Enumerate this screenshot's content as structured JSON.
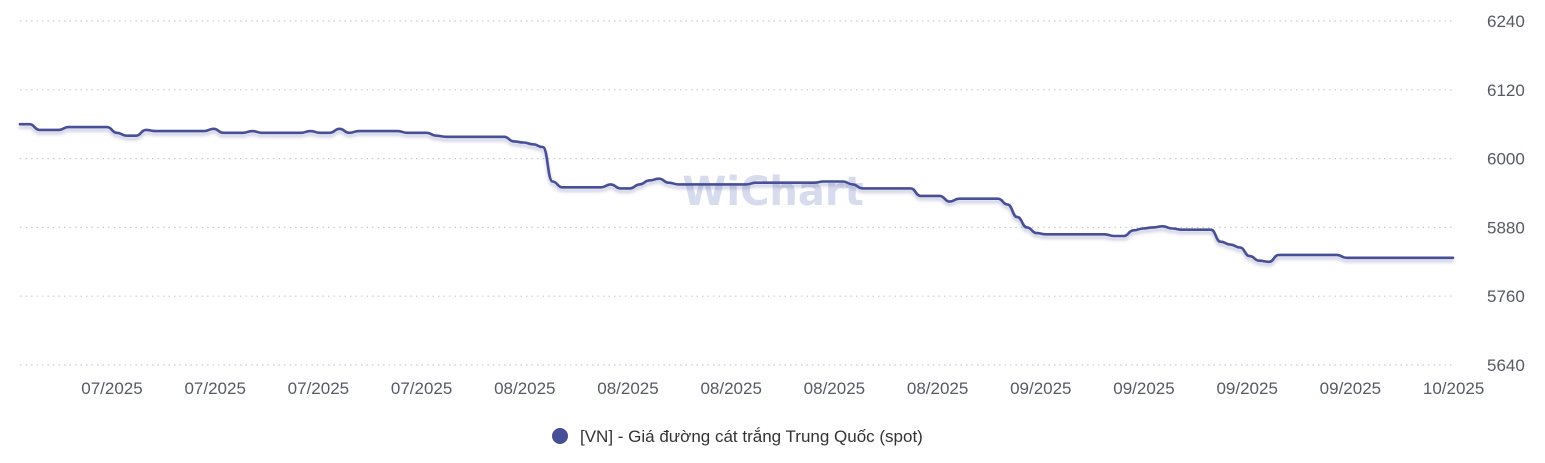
{
  "watermark": "WiChart",
  "chart_data": {
    "type": "line",
    "y_axis_position": "right",
    "ylim": [
      5640,
      6240
    ],
    "y_ticks": [
      6240,
      6120,
      6000,
      5880,
      5760,
      5640
    ],
    "x_tick_labels": [
      "07/2025",
      "07/2025",
      "07/2025",
      "07/2025",
      "08/2025",
      "08/2025",
      "08/2025",
      "08/2025",
      "08/2025",
      "09/2025",
      "09/2025",
      "09/2025",
      "09/2025",
      "10/2025"
    ],
    "grid": true,
    "legend_position": "bottom-center",
    "series": [
      {
        "name": "[VN] - Giá đường cát trắng Trung Quốc (spot)",
        "color": "#474f96",
        "values": [
          6060,
          6060,
          6050,
          6050,
          6050,
          6055,
          6055,
          6055,
          6055,
          6055,
          6045,
          6040,
          6040,
          6050,
          6048,
          6048,
          6048,
          6048,
          6048,
          6048,
          6052,
          6045,
          6045,
          6045,
          6048,
          6045,
          6045,
          6045,
          6045,
          6045,
          6048,
          6045,
          6045,
          6052,
          6045,
          6048,
          6048,
          6048,
          6048,
          6048,
          6045,
          6045,
          6045,
          6040,
          6038,
          6038,
          6038,
          6038,
          6038,
          6038,
          6038,
          6030,
          6028,
          6025,
          6020,
          5960,
          5950,
          5950,
          5950,
          5950,
          5950,
          5955,
          5948,
          5948,
          5955,
          5962,
          5965,
          5958,
          5955,
          5955,
          5955,
          5955,
          5955,
          5955,
          5955,
          5955,
          5958,
          5958,
          5958,
          5958,
          5958,
          5958,
          5958,
          5960,
          5960,
          5960,
          5955,
          5948,
          5948,
          5948,
          5948,
          5948,
          5948,
          5935,
          5935,
          5935,
          5925,
          5930,
          5930,
          5930,
          5930,
          5930,
          5920,
          5898,
          5880,
          5870,
          5868,
          5868,
          5868,
          5868,
          5868,
          5868,
          5868,
          5865,
          5865,
          5875,
          5878,
          5880,
          5882,
          5878,
          5876,
          5876,
          5876,
          5876,
          5855,
          5850,
          5845,
          5830,
          5822,
          5820,
          5832,
          5832,
          5832,
          5832,
          5832,
          5832,
          5832,
          5827,
          5827,
          5827,
          5827,
          5827,
          5827,
          5827,
          5827,
          5827,
          5827,
          5827,
          5827
        ]
      }
    ]
  }
}
